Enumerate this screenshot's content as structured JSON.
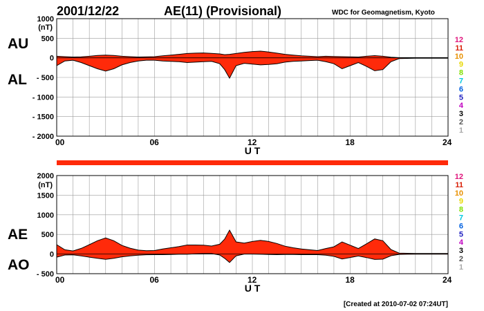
{
  "header": {
    "date": "2001/12/22",
    "title": "AE(11) (Provisional)",
    "source": "WDC for Geomagnetism, Kyoto"
  },
  "footer": {
    "created": "[Created at 2010-07-02 07:24UT]"
  },
  "colors": {
    "fill": "#ff2a0a",
    "strip": "#ff2a0a",
    "grid": "#9a9a9a",
    "line": "#000000"
  },
  "station_legend": [
    {
      "label": "12",
      "color": "#e0147c"
    },
    {
      "label": "11",
      "color": "#d81e05"
    },
    {
      "label": "10",
      "color": "#e89000"
    },
    {
      "label": "9",
      "color": "#e8d800"
    },
    {
      "label": "8",
      "color": "#80e000"
    },
    {
      "label": "7",
      "color": "#00c8e0"
    },
    {
      "label": "6",
      "color": "#0060e0"
    },
    {
      "label": "5",
      "color": "#2020c0"
    },
    {
      "label": "4",
      "color": "#c000c0"
    },
    {
      "label": "3",
      "color": "#000000"
    },
    {
      "label": "2",
      "color": "#555555"
    },
    {
      "label": "1",
      "color": "#a8a8a8"
    }
  ],
  "chart_data": [
    {
      "type": "area",
      "xlabel": "U T",
      "xlim": [
        0,
        24
      ],
      "xticks": [
        0,
        6,
        12,
        18,
        24
      ],
      "xtick_labels": [
        "00",
        "06",
        "12",
        "18",
        "24"
      ],
      "ylim": [
        -2000,
        1000
      ],
      "yticks": [
        1000,
        500,
        0,
        -500,
        -1000,
        -1500,
        -2000
      ],
      "ytick_labels": [
        "1000",
        "500",
        "0",
        "- 500",
        "- 1000",
        "- 1500",
        "- 2000"
      ],
      "yunit": "(nT)",
      "upper_label": "AU",
      "lower_label": "AL",
      "x": [
        0,
        0.5,
        1,
        1.5,
        2,
        2.5,
        3,
        3.5,
        4,
        4.5,
        5,
        5.5,
        6,
        6.5,
        7,
        7.5,
        8,
        8.5,
        9,
        9.5,
        10,
        10.3,
        10.6,
        11,
        11.5,
        12,
        12.5,
        13,
        13.5,
        14,
        14.5,
        15,
        15.5,
        16,
        16.5,
        17,
        17.5,
        18,
        18.5,
        19,
        19.5,
        20,
        20.5,
        21,
        21.5,
        22,
        22.5,
        23,
        23.5,
        24
      ],
      "series": [
        {
          "name": "AU",
          "values": [
            40,
            30,
            20,
            25,
            40,
            60,
            70,
            60,
            40,
            30,
            20,
            25,
            30,
            50,
            70,
            90,
            110,
            120,
            125,
            115,
            100,
            80,
            90,
            110,
            140,
            160,
            170,
            150,
            120,
            90,
            70,
            50,
            40,
            30,
            40,
            35,
            30,
            25,
            20,
            40,
            55,
            40,
            15,
            5,
            5,
            5,
            5,
            5,
            5,
            5
          ]
        },
        {
          "name": "AL",
          "values": [
            -200,
            -80,
            -60,
            -120,
            -200,
            -280,
            -340,
            -280,
            -180,
            -120,
            -80,
            -60,
            -60,
            -80,
            -90,
            -100,
            -120,
            -110,
            -100,
            -90,
            -150,
            -300,
            -520,
            -200,
            -140,
            -160,
            -180,
            -170,
            -150,
            -110,
            -90,
            -80,
            -70,
            -60,
            -100,
            -150,
            -280,
            -200,
            -120,
            -220,
            -330,
            -300,
            -100,
            -20,
            -15,
            -10,
            -10,
            -10,
            -10,
            -10
          ]
        }
      ]
    },
    {
      "type": "area",
      "xlabel": "U T",
      "xlim": [
        0,
        24
      ],
      "xticks": [
        0,
        6,
        12,
        18,
        24
      ],
      "xtick_labels": [
        "00",
        "06",
        "12",
        "18",
        "24"
      ],
      "ylim": [
        -500,
        2000
      ],
      "yticks": [
        2000,
        1500,
        1000,
        500,
        0,
        -500
      ],
      "ytick_labels": [
        "2000",
        "1500",
        "1000",
        "500",
        "0",
        "- 500"
      ],
      "yunit": "(nT)",
      "upper_label": "AE",
      "lower_label": "AO",
      "x": [
        0,
        0.5,
        1,
        1.5,
        2,
        2.5,
        3,
        3.5,
        4,
        4.5,
        5,
        5.5,
        6,
        6.5,
        7,
        7.5,
        8,
        8.5,
        9,
        9.5,
        10,
        10.3,
        10.6,
        11,
        11.5,
        12,
        12.5,
        13,
        13.5,
        14,
        14.5,
        15,
        15.5,
        16,
        16.5,
        17,
        17.5,
        18,
        18.5,
        19,
        19.5,
        20,
        20.5,
        21,
        21.5,
        22,
        22.5,
        23,
        23.5,
        24
      ],
      "series": [
        {
          "name": "AE",
          "values": [
            240,
            110,
            80,
            145,
            240,
            340,
            410,
            340,
            220,
            150,
            100,
            85,
            90,
            130,
            160,
            190,
            230,
            230,
            225,
            205,
            250,
            380,
            610,
            310,
            280,
            320,
            350,
            320,
            270,
            200,
            160,
            130,
            110,
            90,
            140,
            185,
            310,
            225,
            140,
            260,
            385,
            340,
            115,
            25,
            20,
            15,
            15,
            15,
            15,
            15
          ]
        },
        {
          "name": "AO",
          "values": [
            -80,
            -25,
            -20,
            -48,
            -80,
            -110,
            -135,
            -110,
            -70,
            -45,
            -30,
            -18,
            -15,
            -15,
            -10,
            -5,
            -5,
            5,
            12,
            12,
            -25,
            -110,
            -215,
            -45,
            0,
            0,
            -5,
            -10,
            -15,
            -10,
            -10,
            -15,
            -15,
            -15,
            -30,
            -58,
            -125,
            -88,
            -50,
            -90,
            -138,
            -130,
            -42,
            -8,
            -5,
            -3,
            -3,
            -3,
            -3,
            -3
          ]
        }
      ]
    }
  ]
}
